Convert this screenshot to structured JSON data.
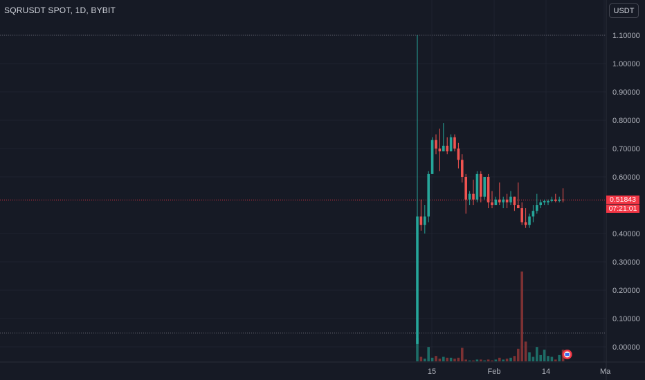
{
  "header": {
    "symbol_title": "SQRUSDT SPOT, 1D, BYBIT",
    "currency_button": "USDT"
  },
  "price_scale": {
    "last_price": "0.51843",
    "countdown": "07:21:01"
  },
  "colors": {
    "background": "#161a25",
    "grid": "#1f2330",
    "up": "#26a69a",
    "down": "#ef5350",
    "up_volume": "#1e7d73",
    "down_volume": "#8e3636",
    "last_price_line": "#f23645",
    "axis_text": "#b2b5be"
  },
  "chart_data": {
    "type": "candlestick",
    "interval": "1D",
    "x_axis_labels": [
      "15",
      "Feb",
      "14",
      "Ma"
    ],
    "y_axis_labels": [
      "1.10000",
      "1.00000",
      "0.90000",
      "0.80000",
      "0.70000",
      "0.60000",
      "0.40000",
      "0.30000",
      "0.20000",
      "0.10000",
      "0.00000"
    ],
    "ylim": [
      -0.06,
      1.15
    ],
    "last_price": 0.51843,
    "grid": true,
    "candles": [
      {
        "o": 0.01,
        "h": 1.1,
        "l": 0.01,
        "c": 0.46
      },
      {
        "o": 0.46,
        "h": 0.52,
        "l": 0.41,
        "c": 0.43
      },
      {
        "o": 0.43,
        "h": 0.5,
        "l": 0.4,
        "c": 0.46
      },
      {
        "o": 0.46,
        "h": 0.62,
        "l": 0.44,
        "c": 0.61
      },
      {
        "o": 0.61,
        "h": 0.74,
        "l": 0.61,
        "c": 0.73
      },
      {
        "o": 0.73,
        "h": 0.75,
        "l": 0.68,
        "c": 0.7
      },
      {
        "o": 0.7,
        "h": 0.77,
        "l": 0.62,
        "c": 0.69
      },
      {
        "o": 0.69,
        "h": 0.79,
        "l": 0.69,
        "c": 0.71
      },
      {
        "o": 0.71,
        "h": 0.74,
        "l": 0.68,
        "c": 0.69
      },
      {
        "o": 0.69,
        "h": 0.75,
        "l": 0.69,
        "c": 0.74
      },
      {
        "o": 0.74,
        "h": 0.75,
        "l": 0.69,
        "c": 0.7
      },
      {
        "o": 0.7,
        "h": 0.72,
        "l": 0.63,
        "c": 0.66
      },
      {
        "o": 0.66,
        "h": 0.68,
        "l": 0.58,
        "c": 0.6
      },
      {
        "o": 0.6,
        "h": 0.61,
        "l": 0.47,
        "c": 0.52
      },
      {
        "o": 0.52,
        "h": 0.55,
        "l": 0.5,
        "c": 0.54
      },
      {
        "o": 0.54,
        "h": 0.59,
        "l": 0.5,
        "c": 0.52
      },
      {
        "o": 0.52,
        "h": 0.62,
        "l": 0.51,
        "c": 0.61
      },
      {
        "o": 0.61,
        "h": 0.62,
        "l": 0.51,
        "c": 0.53
      },
      {
        "o": 0.53,
        "h": 0.6,
        "l": 0.52,
        "c": 0.6
      },
      {
        "o": 0.6,
        "h": 0.61,
        "l": 0.49,
        "c": 0.51
      },
      {
        "o": 0.51,
        "h": 0.55,
        "l": 0.49,
        "c": 0.5
      },
      {
        "o": 0.5,
        "h": 0.53,
        "l": 0.5,
        "c": 0.52
      },
      {
        "o": 0.52,
        "h": 0.58,
        "l": 0.5,
        "c": 0.51
      },
      {
        "o": 0.51,
        "h": 0.53,
        "l": 0.49,
        "c": 0.52
      },
      {
        "o": 0.52,
        "h": 0.54,
        "l": 0.49,
        "c": 0.51
      },
      {
        "o": 0.51,
        "h": 0.55,
        "l": 0.5,
        "c": 0.53
      },
      {
        "o": 0.53,
        "h": 0.53,
        "l": 0.48,
        "c": 0.5
      },
      {
        "o": 0.5,
        "h": 0.58,
        "l": 0.49,
        "c": 0.49
      },
      {
        "o": 0.49,
        "h": 0.51,
        "l": 0.43,
        "c": 0.44
      },
      {
        "o": 0.44,
        "h": 0.49,
        "l": 0.42,
        "c": 0.43
      },
      {
        "o": 0.43,
        "h": 0.47,
        "l": 0.42,
        "c": 0.46
      },
      {
        "o": 0.46,
        "h": 0.5,
        "l": 0.44,
        "c": 0.48
      },
      {
        "o": 0.48,
        "h": 0.54,
        "l": 0.47,
        "c": 0.5
      },
      {
        "o": 0.5,
        "h": 0.52,
        "l": 0.49,
        "c": 0.51
      },
      {
        "o": 0.51,
        "h": 0.52,
        "l": 0.5,
        "c": 0.515
      },
      {
        "o": 0.51,
        "h": 0.52,
        "l": 0.5,
        "c": 0.515
      },
      {
        "o": 0.515,
        "h": 0.53,
        "l": 0.51,
        "c": 0.52
      },
      {
        "o": 0.52,
        "h": 0.54,
        "l": 0.51,
        "c": 0.515
      },
      {
        "o": 0.515,
        "h": 0.53,
        "l": 0.51,
        "c": 0.52
      },
      {
        "o": 0.52,
        "h": 0.56,
        "l": 0.51,
        "c": 0.51843
      }
    ],
    "volume_scale_note": "volume bars drawn in relative units (max = 1)",
    "volumes": [
      0.26,
      0.05,
      0.03,
      0.16,
      0.04,
      0.06,
      0.03,
      0.05,
      0.04,
      0.04,
      0.03,
      0.04,
      0.15,
      0.02,
      0.01,
      0.01,
      0.02,
      0.02,
      0.01,
      0.02,
      0.01,
      0.02,
      0.04,
      0.02,
      0.03,
      0.04,
      0.06,
      0.14,
      1.0,
      0.22,
      0.1,
      0.05,
      0.16,
      0.07,
      0.13,
      0.06,
      0.05,
      0.02,
      0.07,
      0.13
    ]
  }
}
